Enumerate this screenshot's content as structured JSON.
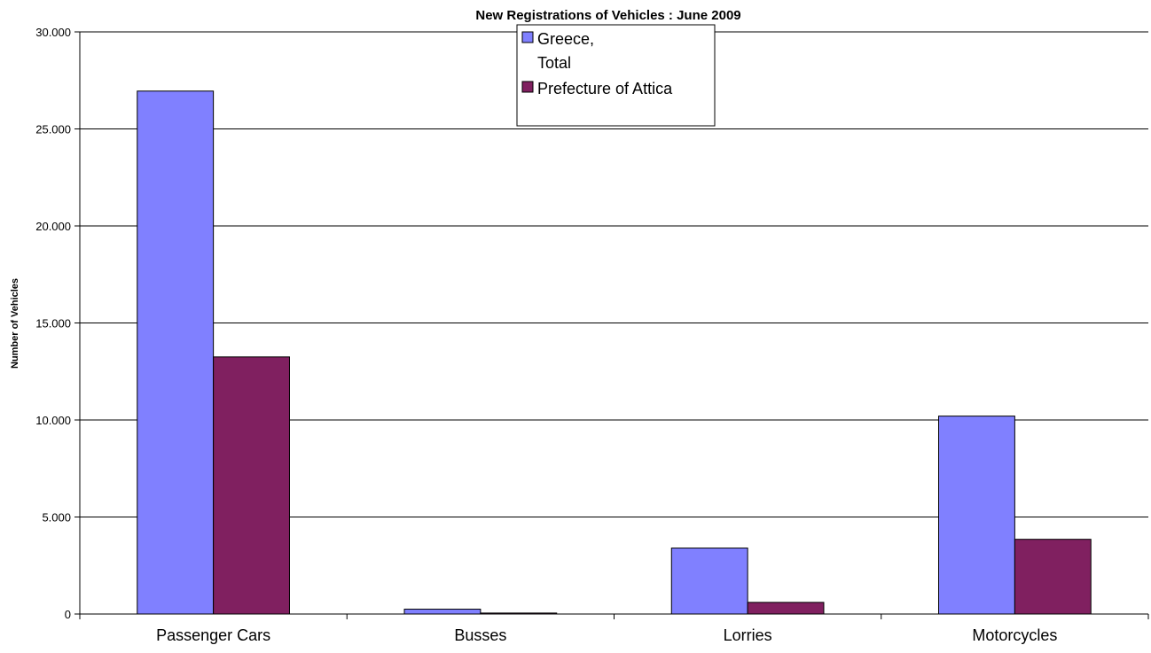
{
  "chart_data": {
    "type": "bar",
    "title": "New Registrations of Vehicles : June 2009",
    "ylabel": "Number of Vehicles",
    "xlabel": "",
    "categories": [
      "Passenger Cars",
      "Busses",
      "Lorries",
      "Motorcycles"
    ],
    "series": [
      {
        "name_lines": [
          "Greece,",
          "Total"
        ],
        "values": [
          26950,
          250,
          3400,
          10200
        ],
        "color": "#8080ff"
      },
      {
        "name_lines": [
          "Prefecture of Attica"
        ],
        "values": [
          13250,
          50,
          600,
          3850
        ],
        "color": "#802060"
      }
    ],
    "ylim": [
      0,
      30000
    ],
    "yticks": [
      0,
      5000,
      10000,
      15000,
      20000,
      25000,
      30000
    ],
    "ytick_labels": [
      "0",
      "5.000",
      "10.000",
      "15.000",
      "20.000",
      "25.000",
      "30.000"
    ],
    "grid": true,
    "legend_position": "top-center"
  }
}
